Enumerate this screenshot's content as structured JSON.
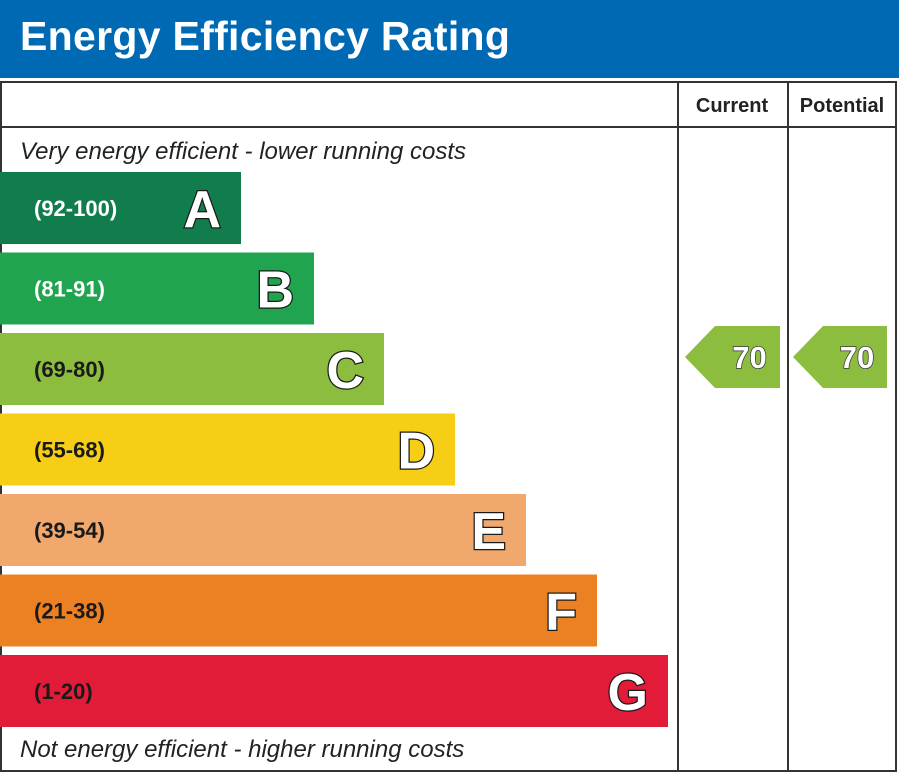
{
  "title": "Energy Efficiency Rating",
  "columns": {
    "current": "Current",
    "potential": "Potential"
  },
  "top_note": "Very energy efficient - lower running costs",
  "bottom_note": "Not energy efficient - higher running costs",
  "chart_data": {
    "type": "bar",
    "title": "Energy Efficiency Rating",
    "bands": [
      {
        "letter": "A",
        "range": "(92-100)",
        "color": "#117d4d"
      },
      {
        "letter": "B",
        "range": "(81-91)",
        "color": "#20a450"
      },
      {
        "letter": "C",
        "range": "(69-80)",
        "color": "#8cbd3f"
      },
      {
        "letter": "D",
        "range": "(55-68)",
        "color": "#f5ce15"
      },
      {
        "letter": "E",
        "range": "(39-54)",
        "color": "#f1a86c"
      },
      {
        "letter": "F",
        "range": "(21-38)",
        "color": "#ec8123"
      },
      {
        "letter": "G",
        "range": "(1-20)",
        "color": "#e21c38"
      }
    ],
    "current": {
      "value": 70,
      "band": "C",
      "color": "#8cbd3f"
    },
    "potential": {
      "value": 70,
      "band": "C",
      "color": "#8cbd3f"
    }
  }
}
